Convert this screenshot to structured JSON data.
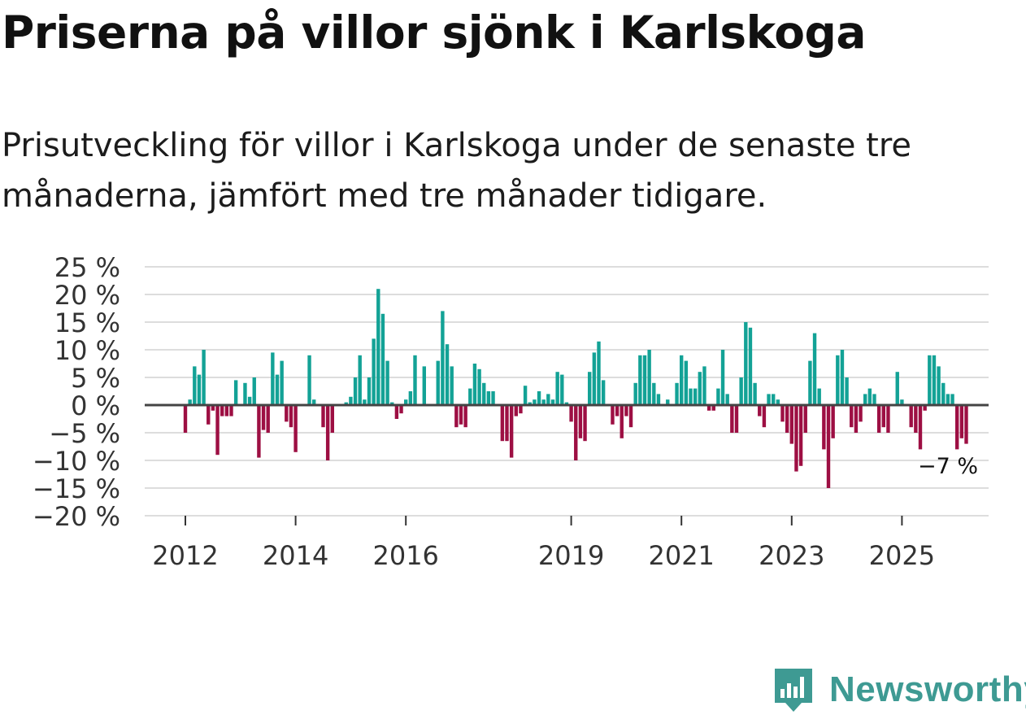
{
  "title": "Priserna på villor sjönk i Karlskoga",
  "subtitle": "Prisutveckling för villor i Karlskoga under de senaste tre månaderna, jämfört med tre månader tidigare.",
  "brand": {
    "name": "Newsworthy",
    "color": "#3e9a93"
  },
  "colors": {
    "positive": "#13a296",
    "negative": "#9d0f43",
    "grid": "#dddddd",
    "zero": "#444444"
  },
  "chart_data": {
    "type": "bar",
    "title": "Priserna på villor sjönk i Karlskoga",
    "xlabel": "",
    "ylabel": "",
    "ylim": [
      -20,
      25
    ],
    "y_ticks": [
      25,
      20,
      15,
      10,
      5,
      0,
      -5,
      -10,
      -15,
      -20
    ],
    "y_tick_labels": [
      "25 %",
      "20 %",
      "15 %",
      "10 %",
      "5 %",
      "0 %",
      "−5 %",
      "−10 %",
      "−15 %",
      "−20 %"
    ],
    "x_ticks": [
      {
        "label": "2012",
        "year": 2012
      },
      {
        "label": "2014",
        "year": 2014
      },
      {
        "label": "2016",
        "year": 2016
      },
      {
        "label": "2019",
        "year": 2019
      },
      {
        "label": "2021",
        "year": 2021
      },
      {
        "label": "2023",
        "year": 2023
      },
      {
        "label": "2025",
        "year": 2025
      }
    ],
    "start_year": 2012,
    "start_month": 1,
    "frequency": "monthly",
    "unit": "%",
    "annotation": {
      "text": "−7 %",
      "value": -7
    },
    "values": [
      -5,
      1,
      7,
      5.5,
      10,
      -3.5,
      -1,
      -9,
      -2,
      -2,
      -2,
      4.5,
      0,
      4,
      1.5,
      5,
      -9.5,
      -4.5,
      -5,
      9.5,
      5.5,
      8,
      -3,
      -4,
      -8.5,
      0,
      0,
      9,
      1,
      0,
      -4,
      -10,
      -5,
      0,
      0,
      0.5,
      1.5,
      5,
      9,
      1,
      5,
      12,
      21,
      16.5,
      8,
      0.5,
      -2.5,
      -1.5,
      1,
      2.5,
      9,
      0,
      7,
      0,
      0,
      8,
      17,
      11,
      7,
      -4,
      -3.5,
      -4,
      3,
      7.5,
      6.5,
      4,
      2.5,
      2.5,
      0,
      -6.5,
      -6.5,
      -9.5,
      -2,
      -1.5,
      3.5,
      0.5,
      1,
      2.5,
      1,
      2,
      1,
      6,
      5.5,
      0.5,
      -3,
      -10,
      -6,
      -6.5,
      6,
      9.5,
      11.5,
      4.5,
      0,
      -3.5,
      -2,
      -6,
      -2,
      -4,
      4,
      9,
      9,
      10,
      4,
      2,
      0,
      1,
      0,
      4,
      9,
      8,
      3,
      3,
      6,
      7,
      -1,
      -1,
      3,
      10,
      2,
      -5,
      -5,
      5,
      15,
      14,
      4,
      -2,
      -4,
      2,
      2,
      1,
      -3,
      -5,
      -7,
      -12,
      -11,
      -5,
      8,
      13,
      3,
      -8,
      -15,
      -6,
      9,
      10,
      5,
      -4,
      -5,
      -3,
      2,
      3,
      2,
      -5,
      -4,
      -5,
      0,
      6,
      1,
      0,
      -4,
      -5,
      -8,
      -1,
      9,
      9,
      7,
      4,
      2,
      2,
      -8,
      -6,
      -7
    ]
  }
}
